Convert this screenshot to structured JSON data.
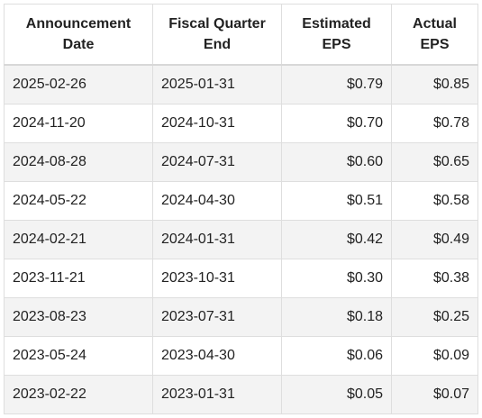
{
  "table": {
    "headers": [
      "Announcement Date",
      "Fiscal Quarter End",
      "Estimated EPS",
      "Actual EPS"
    ],
    "rows": [
      [
        "2025-02-26",
        "2025-01-31",
        "$0.79",
        "$0.85"
      ],
      [
        "2024-11-20",
        "2024-10-31",
        "$0.70",
        "$0.78"
      ],
      [
        "2024-08-28",
        "2024-07-31",
        "$0.60",
        "$0.65"
      ],
      [
        "2024-05-22",
        "2024-04-30",
        "$0.51",
        "$0.58"
      ],
      [
        "2024-02-21",
        "2024-01-31",
        "$0.42",
        "$0.49"
      ],
      [
        "2023-11-21",
        "2023-10-31",
        "$0.30",
        "$0.38"
      ],
      [
        "2023-08-23",
        "2023-07-31",
        "$0.18",
        "$0.25"
      ],
      [
        "2023-05-24",
        "2023-04-30",
        "$0.06",
        "$0.09"
      ],
      [
        "2023-02-22",
        "2023-01-31",
        "$0.05",
        "$0.07"
      ]
    ]
  },
  "colors": {
    "row_stripe": "#f3f3f3",
    "border": "#dedede",
    "text": "#222222"
  }
}
